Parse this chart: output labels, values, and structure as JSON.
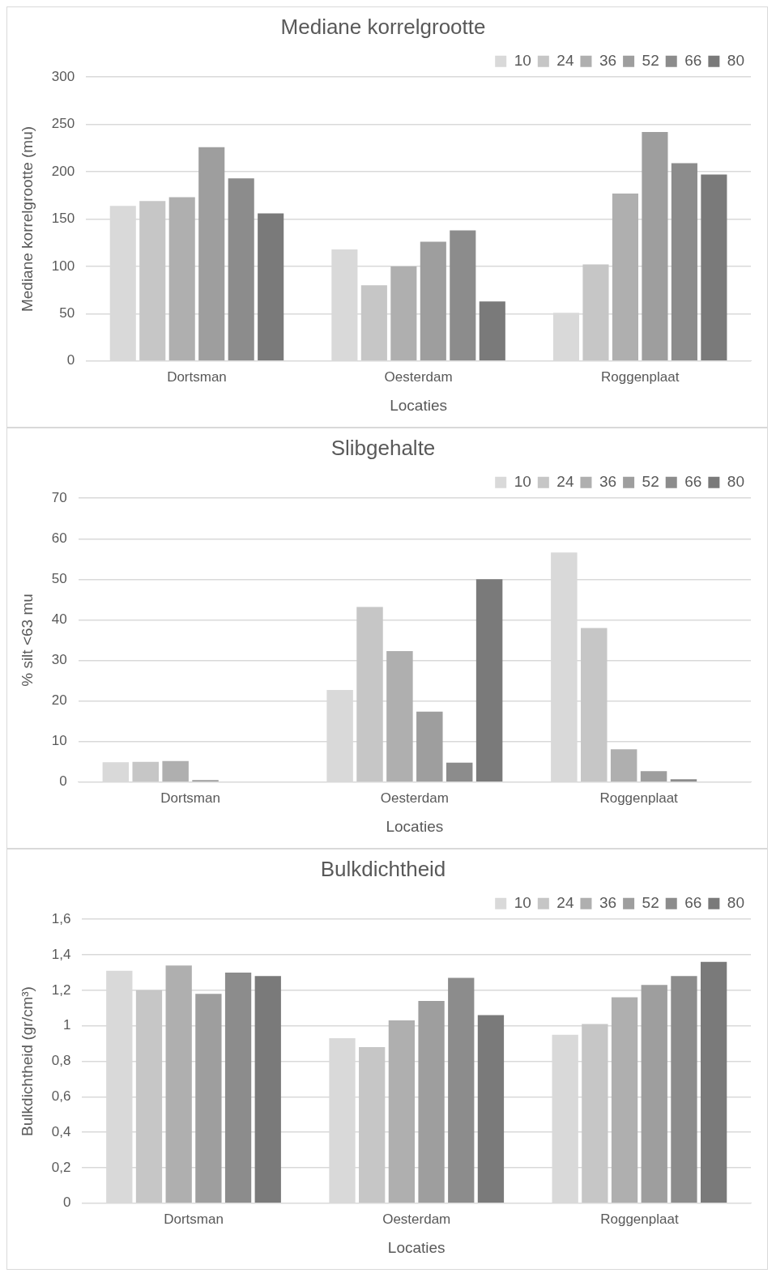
{
  "chart_data": [
    {
      "type": "bar",
      "title": "Mediane korrelgrootte",
      "xlabel": "Locaties",
      "ylabel": "Mediane korrelgrootte (mu)",
      "categories": [
        "Dortsman",
        "Oesterdam",
        "Roggenplaat"
      ],
      "ylim": [
        0,
        300
      ],
      "yticks": [
        0,
        50,
        100,
        150,
        200,
        250,
        300
      ],
      "grid": "y",
      "legend": "top right",
      "series": [
        {
          "name": "10",
          "color": "#d9d9d9",
          "values": [
            164,
            118,
            51
          ]
        },
        {
          "name": "24",
          "color": "#c6c6c6",
          "values": [
            169,
            80,
            102
          ]
        },
        {
          "name": "36",
          "color": "#afafaf",
          "values": [
            173,
            100,
            177
          ]
        },
        {
          "name": "52",
          "color": "#9e9e9e",
          "values": [
            226,
            126,
            242
          ]
        },
        {
          "name": "66",
          "color": "#8c8c8c",
          "values": [
            193,
            138,
            209
          ]
        },
        {
          "name": "80",
          "color": "#7a7a7a",
          "values": [
            156,
            63,
            197
          ]
        }
      ]
    },
    {
      "type": "bar",
      "title": "Slibgehalte",
      "xlabel": "Locaties",
      "ylabel": "% silt <63 mu",
      "categories": [
        "Dortsman",
        "Oesterdam",
        "Roggenplaat"
      ],
      "ylim": [
        0,
        70
      ],
      "yticks": [
        0,
        10,
        20,
        30,
        40,
        50,
        60,
        70
      ],
      "grid": "y",
      "legend": "top right",
      "series": [
        {
          "name": "10",
          "color": "#d9d9d9",
          "values": [
            4.9,
            22.7,
            56.6
          ]
        },
        {
          "name": "24",
          "color": "#c6c6c6",
          "values": [
            5.0,
            43.2,
            38
          ]
        },
        {
          "name": "36",
          "color": "#afafaf",
          "values": [
            5.2,
            32.3,
            8.1
          ]
        },
        {
          "name": "52",
          "color": "#9e9e9e",
          "values": [
            0.5,
            17.4,
            2.7
          ]
        },
        {
          "name": "66",
          "color": "#8c8c8c",
          "values": [
            0,
            4.8,
            0.7
          ]
        },
        {
          "name": "80",
          "color": "#7a7a7a",
          "values": [
            0,
            50,
            0
          ]
        }
      ]
    },
    {
      "type": "bar",
      "title": "Bulkdichtheid",
      "xlabel": "Locaties",
      "ylabel": "Bulkdichtheid (gr/cm³)",
      "categories": [
        "Dortsman",
        "Oesterdam",
        "Roggenplaat"
      ],
      "ylim": [
        0,
        1.6
      ],
      "yticks": [
        0,
        {
          "value": 0.2,
          "label": "0,2"
        },
        {
          "value": 0.4,
          "label": "0,4"
        },
        {
          "value": 0.6,
          "label": "0,6"
        },
        {
          "value": 0.8,
          "label": "0,8"
        },
        1,
        {
          "value": 1.2,
          "label": "1,2"
        },
        {
          "value": 1.4,
          "label": "1,4"
        },
        {
          "value": 1.6,
          "label": "1,6"
        }
      ],
      "grid": "y",
      "legend": "top right",
      "series": [
        {
          "name": "10",
          "color": "#d9d9d9",
          "values": [
            1.31,
            0.93,
            0.95
          ]
        },
        {
          "name": "24",
          "color": "#c6c6c6",
          "values": [
            1.2,
            0.88,
            1.01
          ]
        },
        {
          "name": "36",
          "color": "#afafaf",
          "values": [
            1.34,
            1.03,
            1.16
          ]
        },
        {
          "name": "52",
          "color": "#9e9e9e",
          "values": [
            1.18,
            1.14,
            1.23
          ]
        },
        {
          "name": "66",
          "color": "#8c8c8c",
          "values": [
            1.3,
            1.27,
            1.28
          ]
        },
        {
          "name": "80",
          "color": "#7a7a7a",
          "values": [
            1.28,
            1.06,
            1.36
          ]
        }
      ]
    }
  ]
}
